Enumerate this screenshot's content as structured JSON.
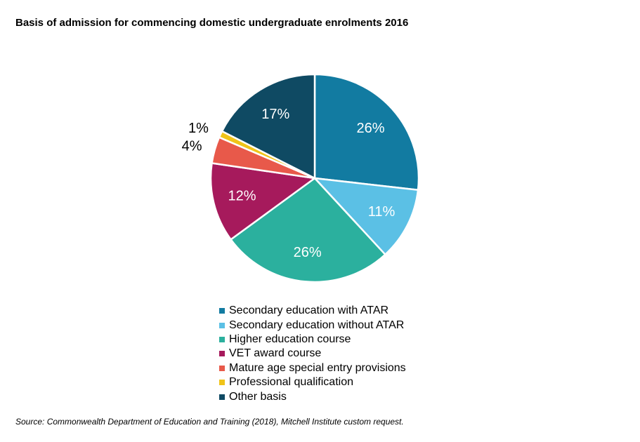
{
  "chart_data": {
    "type": "pie",
    "title": "Basis of admission for commencing domestic undergraduate enrolments 2016",
    "slices": [
      {
        "label": "Secondary education with ATAR",
        "value": 26,
        "display": "26%",
        "color": "#127ba1"
      },
      {
        "label": "Secondary education without ATAR",
        "value": 11,
        "display": "11%",
        "color": "#5bc0e5"
      },
      {
        "label": "Higher education course",
        "value": 26,
        "display": "26%",
        "color": "#2bb09e"
      },
      {
        "label": "VET award course",
        "value": 12,
        "display": "12%",
        "color": "#a61a5c"
      },
      {
        "label": "Mature age special entry provisions",
        "value": 4,
        "display": "4%",
        "color": "#e8594a"
      },
      {
        "label": "Professional qualification",
        "value": 1,
        "display": "1%",
        "color": "#f0c419"
      },
      {
        "label": "Other basis",
        "value": 17,
        "display": "17%",
        "color": "#0f4a63"
      }
    ],
    "legend_position": "bottom"
  },
  "source": "Source: Commonwealth Department of Education and Training (2018), Mitchell Institute custom request."
}
